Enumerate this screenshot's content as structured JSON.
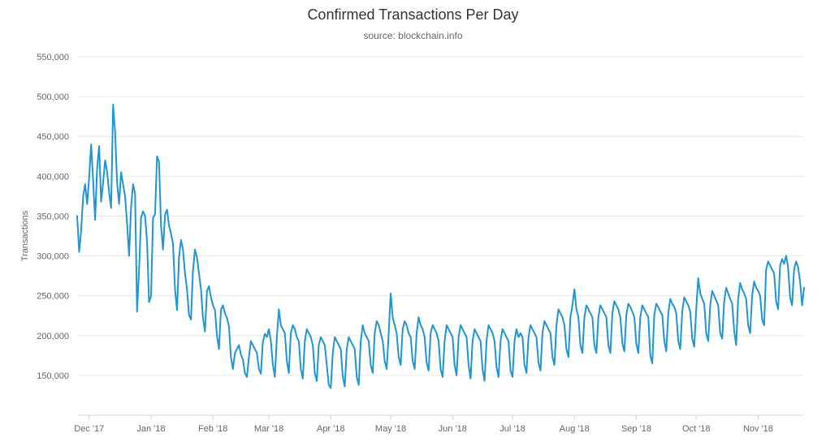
{
  "title": "Confirmed Transactions Per Day",
  "subtitle": "source: blockchain.info",
  "colors": {
    "line": "#1e96d6",
    "grid": "#e6e6e6",
    "axis_line": "#ccd6eb",
    "tick_label": "#666666",
    "title": "#333333",
    "subtitle": "#666666",
    "background": "#ffffff"
  },
  "chart_data": {
    "type": "line",
    "title": "Confirmed Transactions Per Day",
    "subtitle": "source: blockchain.info",
    "series_name": "Transactions",
    "xlabel": "",
    "ylabel": "Transactions",
    "ylim": [
      100000,
      550000
    ],
    "yticks": [
      150000,
      200000,
      250000,
      300000,
      350000,
      400000,
      450000,
      500000,
      550000
    ],
    "grid": true,
    "legend": false,
    "x_tick_labels": [
      "Dec '17",
      "Jan '18",
      "Feb '18",
      "Mar '18",
      "Apr '18",
      "May '18",
      "Jun '18",
      "Jul '18",
      "Aug '18",
      "Sep '18",
      "Oct '18",
      "Nov '18"
    ],
    "x_tick_days": [
      6,
      37,
      68,
      96,
      127,
      157,
      188,
      218,
      249,
      280,
      310,
      341
    ],
    "x_range_note": "daily values, Nov 25 2017 through Nov 24 2018",
    "values": [
      350000,
      305000,
      332000,
      375000,
      390000,
      365000,
      398000,
      440000,
      394000,
      345000,
      410000,
      438000,
      368000,
      392000,
      420000,
      405000,
      380000,
      360000,
      490000,
      455000,
      392000,
      365000,
      405000,
      390000,
      375000,
      340000,
      300000,
      362000,
      390000,
      378000,
      230000,
      282000,
      348000,
      356000,
      350000,
      318000,
      242000,
      250000,
      348000,
      352000,
      425000,
      418000,
      338000,
      308000,
      352000,
      358000,
      338000,
      328000,
      315000,
      258000,
      232000,
      298000,
      320000,
      308000,
      278000,
      258000,
      226000,
      220000,
      282000,
      308000,
      298000,
      278000,
      258000,
      222000,
      205000,
      256000,
      262000,
      248000,
      238000,
      232000,
      200000,
      183000,
      232000,
      238000,
      228000,
      222000,
      212000,
      173000,
      158000,
      178000,
      183000,
      188000,
      176000,
      170000,
      153000,
      148000,
      173000,
      193000,
      188000,
      183000,
      178000,
      158000,
      152000,
      192000,
      202000,
      198000,
      208000,
      193000,
      163000,
      148000,
      198000,
      233000,
      213000,
      208000,
      203000,
      168000,
      153000,
      203000,
      213000,
      208000,
      198000,
      193000,
      158000,
      146000,
      193000,
      208000,
      203000,
      198000,
      188000,
      153000,
      143000,
      188000,
      198000,
      193000,
      188000,
      163000,
      138000,
      134000,
      178000,
      198000,
      193000,
      188000,
      183000,
      148000,
      136000,
      183000,
      198000,
      193000,
      188000,
      183000,
      148000,
      138000,
      193000,
      213000,
      203000,
      198000,
      193000,
      163000,
      153000,
      203000,
      218000,
      213000,
      203000,
      193000,
      168000,
      158000,
      203000,
      253000,
      223000,
      213000,
      203000,
      173000,
      163000,
      208000,
      218000,
      213000,
      203000,
      198000,
      168000,
      158000,
      203000,
      223000,
      213000,
      208000,
      198000,
      166000,
      156000,
      203000,
      213000,
      208000,
      203000,
      193000,
      158000,
      148000,
      193000,
      213000,
      208000,
      203000,
      198000,
      163000,
      150000,
      198000,
      213000,
      208000,
      203000,
      198000,
      163000,
      146000,
      193000,
      208000,
      203000,
      198000,
      193000,
      158000,
      143000,
      193000,
      213000,
      208000,
      203000,
      193000,
      160000,
      148000,
      193000,
      208000,
      203000,
      198000,
      193000,
      156000,
      148000,
      193000,
      208000,
      198000,
      203000,
      198000,
      163000,
      153000,
      198000,
      213000,
      208000,
      203000,
      198000,
      166000,
      156000,
      203000,
      218000,
      213000,
      208000,
      203000,
      173000,
      163000,
      213000,
      233000,
      228000,
      223000,
      213000,
      183000,
      173000,
      223000,
      238000,
      258000,
      233000,
      223000,
      188000,
      178000,
      223000,
      238000,
      233000,
      228000,
      223000,
      188000,
      178000,
      223000,
      238000,
      233000,
      228000,
      223000,
      188000,
      178000,
      228000,
      243000,
      238000,
      233000,
      223000,
      190000,
      180000,
      226000,
      240000,
      236000,
      230000,
      223000,
      190000,
      178000,
      223000,
      238000,
      233000,
      228000,
      223000,
      175000,
      165000,
      226000,
      240000,
      236000,
      230000,
      226000,
      193000,
      180000,
      228000,
      246000,
      240000,
      236000,
      228000,
      193000,
      183000,
      230000,
      248000,
      243000,
      238000,
      230000,
      196000,
      186000,
      233000,
      272000,
      253000,
      246000,
      240000,
      203000,
      193000,
      238000,
      256000,
      250000,
      244000,
      238000,
      203000,
      196000,
      243000,
      260000,
      253000,
      246000,
      240000,
      206000,
      188000,
      246000,
      266000,
      258000,
      253000,
      246000,
      213000,
      203000,
      250000,
      268000,
      260000,
      256000,
      250000,
      220000,
      213000,
      283000,
      293000,
      288000,
      283000,
      278000,
      243000,
      233000,
      288000,
      296000,
      290000,
      300000,
      286000,
      248000,
      238000,
      283000,
      293000,
      286000,
      268000,
      238000,
      260000
    ]
  }
}
